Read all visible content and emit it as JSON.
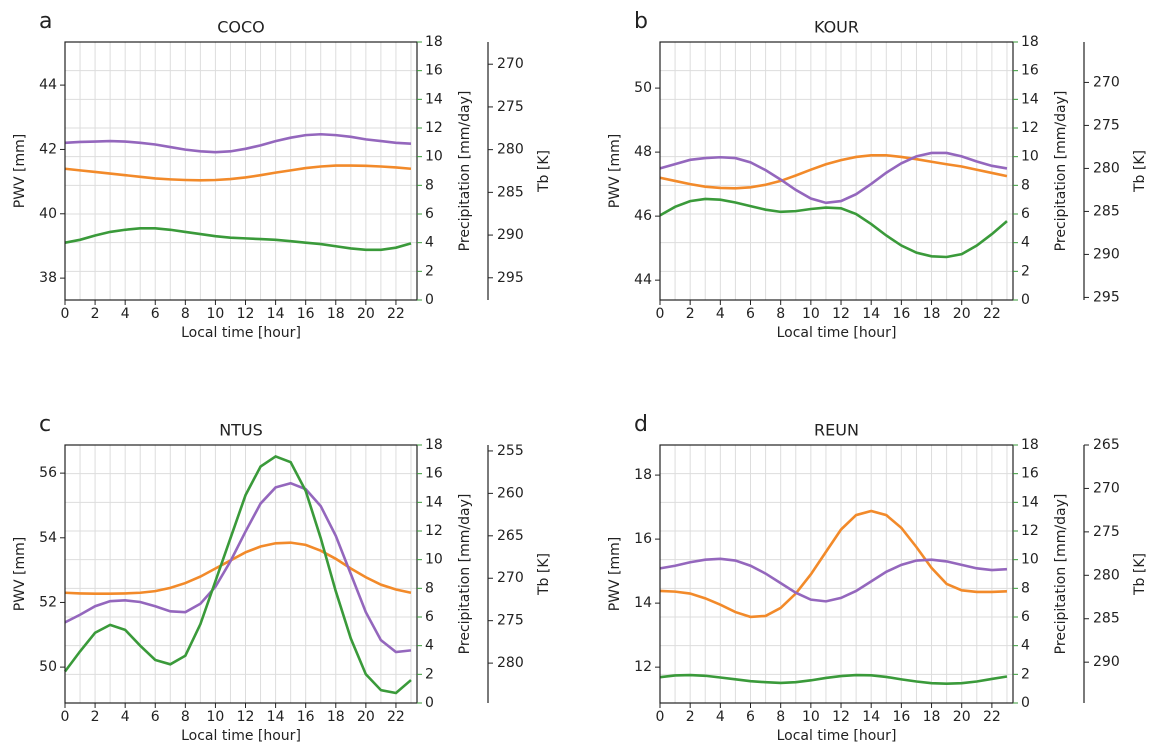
{
  "chart_data": [
    {
      "type": "line",
      "panel_label": "a",
      "title": "COCO",
      "x": [
        0,
        1,
        2,
        3,
        4,
        5,
        6,
        7,
        8,
        9,
        10,
        11,
        12,
        13,
        14,
        15,
        16,
        17,
        18,
        19,
        20,
        21,
        22,
        23
      ],
      "xlim": [
        0,
        23.4
      ],
      "xticks": [
        0,
        2,
        4,
        6,
        8,
        10,
        12,
        14,
        16,
        18,
        20,
        22
      ],
      "xlabel": "Local time [hour]",
      "ylabel": "PWV [mm]",
      "ylim": [
        37.32,
        45.34
      ],
      "yticks": [
        38,
        40,
        42,
        44
      ],
      "y2label": "Precipitation [mm/day]",
      "y2lim": [
        0,
        18
      ],
      "y2ticks": [
        0,
        2,
        4,
        6,
        8,
        10,
        12,
        14,
        16,
        18
      ],
      "y2color": "#3a9a3a",
      "y3label": "Tb [K]",
      "y3lim": [
        267.4,
        297.6
      ],
      "y3ticks": [
        270,
        275,
        280,
        285,
        290,
        295
      ],
      "y3inverted": true,
      "y3color": "#9467bd",
      "grid": true,
      "series": [
        {
          "color": "#f28a2a",
          "axis": "y",
          "values": [
            41.4,
            41.35,
            41.3,
            41.25,
            41.2,
            41.15,
            41.1,
            41.07,
            41.05,
            41.04,
            41.05,
            41.08,
            41.13,
            41.2,
            41.28,
            41.35,
            41.42,
            41.47,
            41.5,
            41.5,
            41.49,
            41.47,
            41.44,
            41.4
          ]
        },
        {
          "color": "#9467bd",
          "axis": "y3",
          "values": [
            279.2,
            279.1,
            279.05,
            279.0,
            279.05,
            279.2,
            279.4,
            279.7,
            280.0,
            280.2,
            280.3,
            280.2,
            279.9,
            279.5,
            279.0,
            278.6,
            278.3,
            278.2,
            278.3,
            278.5,
            278.8,
            279.0,
            279.2,
            279.3
          ]
        },
        {
          "color": "#3a9a3a",
          "axis": "y2",
          "values": [
            4.0,
            4.2,
            4.5,
            4.75,
            4.9,
            5.0,
            5.0,
            4.9,
            4.75,
            4.6,
            4.45,
            4.35,
            4.3,
            4.25,
            4.2,
            4.1,
            4.0,
            3.9,
            3.75,
            3.6,
            3.5,
            3.5,
            3.65,
            3.95
          ]
        }
      ]
    },
    {
      "type": "line",
      "panel_label": "b",
      "title": "KOUR",
      "x": [
        0,
        1,
        2,
        3,
        4,
        5,
        6,
        7,
        8,
        9,
        10,
        11,
        12,
        13,
        14,
        15,
        16,
        17,
        18,
        19,
        20,
        21,
        22,
        23
      ],
      "xlim": [
        0,
        23.4
      ],
      "xticks": [
        0,
        2,
        4,
        6,
        8,
        10,
        12,
        14,
        16,
        18,
        20,
        22
      ],
      "xlabel": "Local time [hour]",
      "ylabel": "PWV [mm]",
      "ylim": [
        43.38,
        51.44
      ],
      "yticks": [
        44,
        46,
        48,
        50
      ],
      "y2label": "Precipitation [mm/day]",
      "y2lim": [
        0,
        18
      ],
      "y2ticks": [
        0,
        2,
        4,
        6,
        8,
        10,
        12,
        14,
        16,
        18
      ],
      "y2color": "#3a9a3a",
      "y3label": "Tb [K]",
      "y3lim": [
        265.3,
        295.3
      ],
      "y3ticks": [
        270,
        275,
        280,
        285,
        290,
        295
      ],
      "y3inverted": true,
      "y3color": "#9467bd",
      "grid": true,
      "series": [
        {
          "color": "#f28a2a",
          "axis": "y",
          "values": [
            47.2,
            47.1,
            47.0,
            46.92,
            46.88,
            46.87,
            46.9,
            46.98,
            47.1,
            47.27,
            47.45,
            47.62,
            47.75,
            47.85,
            47.9,
            47.9,
            47.85,
            47.78,
            47.7,
            47.62,
            47.55,
            47.45,
            47.35,
            47.25
          ]
        },
        {
          "color": "#9467bd",
          "axis": "y3",
          "values": [
            280.0,
            279.5,
            279.0,
            278.8,
            278.7,
            278.8,
            279.3,
            280.2,
            281.3,
            282.5,
            283.5,
            284.0,
            283.8,
            283.0,
            281.8,
            280.5,
            279.4,
            278.6,
            278.2,
            278.2,
            278.6,
            279.2,
            279.7,
            280.0
          ]
        },
        {
          "color": "#3a9a3a",
          "axis": "y2",
          "values": [
            5.9,
            6.5,
            6.9,
            7.05,
            7.0,
            6.8,
            6.55,
            6.3,
            6.15,
            6.2,
            6.35,
            6.45,
            6.4,
            6.0,
            5.3,
            4.5,
            3.8,
            3.3,
            3.05,
            3.0,
            3.2,
            3.8,
            4.6,
            5.5
          ]
        }
      ]
    },
    {
      "type": "line",
      "panel_label": "c",
      "title": "NTUS",
      "x": [
        0,
        1,
        2,
        3,
        4,
        5,
        6,
        7,
        8,
        9,
        10,
        11,
        12,
        13,
        14,
        15,
        16,
        17,
        18,
        19,
        20,
        21,
        22,
        23
      ],
      "xlim": [
        0,
        23.4
      ],
      "xticks": [
        0,
        2,
        4,
        6,
        8,
        10,
        12,
        14,
        16,
        18,
        20,
        22
      ],
      "xlabel": "Local time [hour]",
      "ylabel": "PWV [mm]",
      "ylim": [
        48.89,
        56.87
      ],
      "yticks": [
        50,
        52,
        54,
        56
      ],
      "y2label": "Precipitation [mm/day]",
      "y2lim": [
        0,
        18
      ],
      "y2ticks": [
        0,
        2,
        4,
        6,
        8,
        10,
        12,
        14,
        16,
        18
      ],
      "y2color": "#3a9a3a",
      "y3label": "Tb [K]",
      "y3lim": [
        254.3,
        284.7
      ],
      "y3ticks": [
        255,
        260,
        265,
        270,
        275,
        280
      ],
      "y3inverted": true,
      "y3color": "#9467bd",
      "grid": true,
      "series": [
        {
          "color": "#f28a2a",
          "axis": "y",
          "values": [
            52.3,
            52.28,
            52.27,
            52.27,
            52.28,
            52.3,
            52.35,
            52.45,
            52.6,
            52.8,
            53.05,
            53.3,
            53.55,
            53.73,
            53.83,
            53.85,
            53.78,
            53.6,
            53.35,
            53.05,
            52.78,
            52.55,
            52.4,
            52.3
          ]
        },
        {
          "color": "#9467bd",
          "axis": "y3",
          "values": [
            275.2,
            274.3,
            273.3,
            272.7,
            272.6,
            272.8,
            273.3,
            273.9,
            274.0,
            273.0,
            271.0,
            268.0,
            264.5,
            261.2,
            259.3,
            258.8,
            259.5,
            261.5,
            265.0,
            269.5,
            274.0,
            277.3,
            278.7,
            278.5
          ]
        },
        {
          "color": "#3a9a3a",
          "axis": "y2",
          "values": [
            2.2,
            3.6,
            4.9,
            5.45,
            5.1,
            4.0,
            3.0,
            2.7,
            3.3,
            5.5,
            8.5,
            11.5,
            14.5,
            16.5,
            17.2,
            16.8,
            14.8,
            11.5,
            7.8,
            4.5,
            2.0,
            0.9,
            0.7,
            1.6
          ]
        }
      ]
    },
    {
      "type": "line",
      "panel_label": "d",
      "title": "REUN",
      "x": [
        0,
        1,
        2,
        3,
        4,
        5,
        6,
        7,
        8,
        9,
        10,
        11,
        12,
        13,
        14,
        15,
        16,
        17,
        18,
        19,
        20,
        21,
        22,
        23
      ],
      "xlim": [
        0,
        23.4
      ],
      "xticks": [
        0,
        2,
        4,
        6,
        8,
        10,
        12,
        14,
        16,
        18,
        20,
        22
      ],
      "xlabel": "Local time [hour]",
      "ylabel": "PWV [mm]",
      "ylim": [
        10.88,
        18.94
      ],
      "yticks": [
        12,
        14,
        16,
        18
      ],
      "y2label": "Precipitation [mm/day]",
      "y2lim": [
        0,
        18
      ],
      "y2ticks": [
        0,
        2,
        4,
        6,
        8,
        10,
        12,
        14,
        16,
        18
      ],
      "y2color": "#3a9a3a",
      "y3label": "Tb [K]",
      "y3lim": [
        265,
        294.7
      ],
      "y3ticks": [
        265,
        270,
        275,
        280,
        285,
        290
      ],
      "y3inverted": true,
      "y3color": "#9467bd",
      "grid": true,
      "series": [
        {
          "color": "#f28a2a",
          "axis": "y",
          "values": [
            14.38,
            14.36,
            14.3,
            14.15,
            13.95,
            13.72,
            13.57,
            13.6,
            13.85,
            14.3,
            14.9,
            15.6,
            16.3,
            16.75,
            16.88,
            16.75,
            16.35,
            15.75,
            15.1,
            14.6,
            14.4,
            14.35,
            14.35,
            14.37
          ]
        },
        {
          "color": "#9467bd",
          "axis": "y3",
          "values": [
            279.2,
            278.9,
            278.5,
            278.2,
            278.1,
            278.3,
            278.9,
            279.8,
            280.9,
            282.0,
            282.8,
            283.0,
            282.6,
            281.8,
            280.7,
            279.6,
            278.8,
            278.3,
            278.2,
            278.4,
            278.8,
            279.2,
            279.4,
            279.3
          ]
        },
        {
          "color": "#3a9a3a",
          "axis": "y2",
          "values": [
            1.8,
            1.92,
            1.95,
            1.9,
            1.78,
            1.65,
            1.52,
            1.45,
            1.4,
            1.45,
            1.58,
            1.75,
            1.88,
            1.95,
            1.93,
            1.82,
            1.65,
            1.5,
            1.38,
            1.35,
            1.38,
            1.5,
            1.68,
            1.85
          ]
        }
      ]
    }
  ]
}
